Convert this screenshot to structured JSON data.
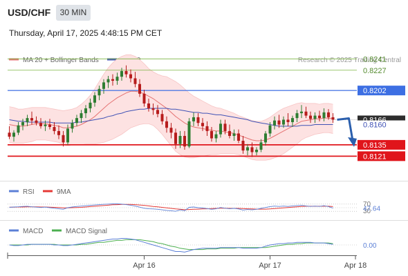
{
  "header": {
    "symbol": "USD/CHF",
    "timeframe": "30 MIN",
    "datetime": "Thursday, April 17, 2025 4:48:15 PM CET"
  },
  "legend": {
    "ma20_label": "MA 20 + Bollinger Bands",
    "ma50_label": "MA 50",
    "credit": "Research © 2025 Trading Central"
  },
  "colors": {
    "candle_up": "#2e7d32",
    "candle_down": "#b71c1c",
    "ma20": "#e57373",
    "ma50": "#3f51b5",
    "bollinger_fill": "#fde2e2",
    "resistance_green": "#7cb342",
    "pivot_blue": "#3d6fe3",
    "support_red": "#e0151b",
    "arrow": "#2b5fad",
    "rsi": "#5b7fd6",
    "rsi_ma": "#e53935",
    "macd": "#5b7fd6",
    "macd_signal": "#4caf50"
  },
  "chart_data": {
    "type": "candlestick",
    "price_range": [
      0.81145,
      0.82285
    ],
    "levels": [
      {
        "value": 0.8241,
        "label": "0.8241",
        "style": "resistance"
      },
      {
        "value": 0.8227,
        "label": "0.8227",
        "style": "resistance"
      },
      {
        "value": 0.8202,
        "label": "0.8202",
        "style": "pivot"
      },
      {
        "value": 0.8135,
        "label": "0.8135",
        "style": "support"
      },
      {
        "value": 0.8121,
        "label": "0.8121",
        "style": "support"
      }
    ],
    "last_price_label": "0.8166",
    "ma50_label": "0.8160",
    "candles": [
      [
        0.815,
        0.8158,
        0.8142,
        0.8145
      ],
      [
        0.8145,
        0.8153,
        0.8139,
        0.815
      ],
      [
        0.815,
        0.8163,
        0.8147,
        0.8159
      ],
      [
        0.8159,
        0.8167,
        0.8153,
        0.8163
      ],
      [
        0.8163,
        0.8172,
        0.8158,
        0.8168
      ],
      [
        0.8168,
        0.8176,
        0.816,
        0.8165
      ],
      [
        0.8165,
        0.817,
        0.8159,
        0.8162
      ],
      [
        0.8162,
        0.8168,
        0.8155,
        0.8158
      ],
      [
        0.8158,
        0.8165,
        0.8152,
        0.816
      ],
      [
        0.816,
        0.8167,
        0.8154,
        0.8157
      ],
      [
        0.8157,
        0.8163,
        0.8148,
        0.8152
      ],
      [
        0.8152,
        0.8159,
        0.8142,
        0.8147
      ],
      [
        0.8147,
        0.8152,
        0.8133,
        0.8138
      ],
      [
        0.8138,
        0.816,
        0.8135,
        0.8155
      ],
      [
        0.8155,
        0.8166,
        0.815,
        0.8162
      ],
      [
        0.8162,
        0.8172,
        0.8158,
        0.8168
      ],
      [
        0.8168,
        0.8178,
        0.8162,
        0.8174
      ],
      [
        0.8174,
        0.8184,
        0.8168,
        0.818
      ],
      [
        0.818,
        0.8192,
        0.8175,
        0.8187
      ],
      [
        0.8187,
        0.82,
        0.8182,
        0.8196
      ],
      [
        0.8196,
        0.8208,
        0.819,
        0.8204
      ],
      [
        0.8204,
        0.8216,
        0.8198,
        0.8212
      ],
      [
        0.8212,
        0.822,
        0.8205,
        0.8216
      ],
      [
        0.8216,
        0.8222,
        0.8208,
        0.8214
      ],
      [
        0.8214,
        0.8224,
        0.8209,
        0.8219
      ],
      [
        0.8219,
        0.823,
        0.8214,
        0.8226
      ],
      [
        0.8226,
        0.8233,
        0.8218,
        0.8222
      ],
      [
        0.8222,
        0.8228,
        0.8212,
        0.8217
      ],
      [
        0.8217,
        0.8225,
        0.8206,
        0.821
      ],
      [
        0.821,
        0.8216,
        0.8194,
        0.8198
      ],
      [
        0.8198,
        0.8203,
        0.8182,
        0.8186
      ],
      [
        0.8186,
        0.8192,
        0.8176,
        0.818
      ],
      [
        0.818,
        0.8186,
        0.8172,
        0.8178
      ],
      [
        0.8178,
        0.8184,
        0.8169,
        0.8173
      ],
      [
        0.8173,
        0.8178,
        0.816,
        0.8164
      ],
      [
        0.8164,
        0.817,
        0.815,
        0.8156
      ],
      [
        0.8156,
        0.8162,
        0.8143,
        0.815
      ],
      [
        0.815,
        0.8155,
        0.813,
        0.8136
      ],
      [
        0.8136,
        0.8152,
        0.8131,
        0.8146
      ],
      [
        0.8146,
        0.8152,
        0.8129,
        0.8133
      ],
      [
        0.8133,
        0.8168,
        0.8131,
        0.8164
      ],
      [
        0.8164,
        0.8175,
        0.8158,
        0.8169
      ],
      [
        0.8169,
        0.8174,
        0.8158,
        0.8162
      ],
      [
        0.8162,
        0.8168,
        0.8152,
        0.8158
      ],
      [
        0.8158,
        0.8164,
        0.8146,
        0.8152
      ],
      [
        0.8152,
        0.8157,
        0.8139,
        0.8143
      ],
      [
        0.8143,
        0.8152,
        0.8138,
        0.8148
      ],
      [
        0.8148,
        0.8166,
        0.8144,
        0.8161
      ],
      [
        0.8161,
        0.8166,
        0.8148,
        0.8152
      ],
      [
        0.8152,
        0.816,
        0.8143,
        0.8146
      ],
      [
        0.8146,
        0.8154,
        0.814,
        0.8149
      ],
      [
        0.8149,
        0.8154,
        0.8137,
        0.814
      ],
      [
        0.814,
        0.8146,
        0.8124,
        0.8128
      ],
      [
        0.8128,
        0.8136,
        0.8122,
        0.8132
      ],
      [
        0.8132,
        0.8138,
        0.812,
        0.8126
      ],
      [
        0.8126,
        0.8132,
        0.8122,
        0.8129
      ],
      [
        0.8129,
        0.8142,
        0.8126,
        0.8138
      ],
      [
        0.8138,
        0.8152,
        0.8134,
        0.8149
      ],
      [
        0.8149,
        0.8163,
        0.8145,
        0.8159
      ],
      [
        0.8159,
        0.817,
        0.8154,
        0.8165
      ],
      [
        0.8165,
        0.8172,
        0.8156,
        0.816
      ],
      [
        0.816,
        0.817,
        0.8156,
        0.8166
      ],
      [
        0.8166,
        0.8174,
        0.8158,
        0.8163
      ],
      [
        0.8163,
        0.8171,
        0.8157,
        0.8168
      ],
      [
        0.8168,
        0.8178,
        0.8163,
        0.8174
      ],
      [
        0.8174,
        0.8184,
        0.8168,
        0.8176
      ],
      [
        0.8176,
        0.8182,
        0.8168,
        0.8171
      ],
      [
        0.8171,
        0.8176,
        0.8162,
        0.8167
      ],
      [
        0.8167,
        0.8175,
        0.8162,
        0.8171
      ],
      [
        0.8171,
        0.8177,
        0.8164,
        0.8168
      ],
      [
        0.8168,
        0.818,
        0.8164,
        0.8175
      ],
      [
        0.8175,
        0.8179,
        0.8166,
        0.8169
      ],
      [
        0.8169,
        0.8174,
        0.8162,
        0.8166
      ]
    ],
    "ma20": [
      0.816,
      0.8159,
      0.8158,
      0.8158,
      0.8159,
      0.816,
      0.8161,
      0.8161,
      0.8161,
      0.816,
      0.8159,
      0.8158,
      0.8156,
      0.8156,
      0.8157,
      0.8158,
      0.816,
      0.8163,
      0.8166,
      0.817,
      0.8175,
      0.818,
      0.8185,
      0.8189,
      0.8193,
      0.8196,
      0.8199,
      0.8201,
      0.8201,
      0.82,
      0.8198,
      0.8195,
      0.8192,
      0.8188,
      0.8184,
      0.818,
      0.8175,
      0.817,
      0.8166,
      0.8162,
      0.8159,
      0.8157,
      0.8156,
      0.8155,
      0.8154,
      0.8153,
      0.8152,
      0.8152,
      0.8151,
      0.815,
      0.8149,
      0.8147,
      0.8145,
      0.8143,
      0.8141,
      0.814,
      0.814,
      0.8141,
      0.8143,
      0.8146,
      0.8149,
      0.8152,
      0.8155,
      0.8158,
      0.8161,
      0.8164,
      0.8165,
      0.8166,
      0.8167,
      0.8167,
      0.8168,
      0.8168,
      0.8167
    ],
    "ma50": [
      0.8166,
      0.8165,
      0.8164,
      0.8164,
      0.8163,
      0.8163,
      0.8163,
      0.8163,
      0.8163,
      0.8163,
      0.8162,
      0.8162,
      0.8162,
      0.8162,
      0.8162,
      0.8163,
      0.8163,
      0.8164,
      0.8165,
      0.8166,
      0.8167,
      0.8168,
      0.817,
      0.8171,
      0.8173,
      0.8174,
      0.8176,
      0.8177,
      0.8178,
      0.8179,
      0.8179,
      0.818,
      0.818,
      0.818,
      0.818,
      0.818,
      0.8179,
      0.8179,
      0.8178,
      0.8177,
      0.8176,
      0.8175,
      0.8175,
      0.8174,
      0.8174,
      0.8173,
      0.8172,
      0.8172,
      0.8171,
      0.817,
      0.8169,
      0.8168,
      0.8167,
      0.8166,
      0.8164,
      0.8163,
      0.8162,
      0.8161,
      0.816,
      0.8159,
      0.8158,
      0.8158,
      0.8158,
      0.8158,
      0.8158,
      0.8159,
      0.8159,
      0.8159,
      0.816,
      0.816,
      0.816,
      0.816,
      0.816
    ],
    "bb_width": [
      0.0022,
      0.0022,
      0.0021,
      0.0021,
      0.0021,
      0.0021,
      0.002,
      0.002,
      0.002,
      0.002,
      0.002,
      0.002,
      0.0021,
      0.0022,
      0.0022,
      0.0023,
      0.0025,
      0.0027,
      0.003,
      0.0034,
      0.0038,
      0.0042,
      0.0045,
      0.0047,
      0.0048,
      0.0048,
      0.0047,
      0.0045,
      0.0043,
      0.004,
      0.0037,
      0.0034,
      0.0033,
      0.0034,
      0.0036,
      0.0039,
      0.0041,
      0.0043,
      0.0043,
      0.0042,
      0.004,
      0.0038,
      0.0036,
      0.0034,
      0.0032,
      0.003,
      0.0029,
      0.0028,
      0.0027,
      0.0026,
      0.0025,
      0.0024,
      0.0024,
      0.0024,
      0.0024,
      0.0024,
      0.0024,
      0.0025,
      0.0026,
      0.0027,
      0.0028,
      0.0028,
      0.0027,
      0.0026,
      0.0025,
      0.0023,
      0.0021,
      0.002,
      0.0019,
      0.0018,
      0.0018,
      0.0018,
      0.0018
    ],
    "forecast": [
      0.8166,
      0.8135
    ],
    "rsi": {
      "label": "RSI",
      "ma_label": "9MA",
      "levels": [
        {
          "value": 70,
          "label": "70"
        },
        {
          "value": 30,
          "label": "30"
        }
      ],
      "value_label": "47.64",
      "values": [
        52,
        54,
        55,
        57,
        58,
        55,
        53,
        51,
        53,
        50,
        47,
        44,
        41,
        50,
        54,
        57,
        59,
        61,
        63,
        65,
        67,
        69,
        70,
        71,
        72,
        70,
        67,
        64,
        59,
        53,
        47,
        44,
        43,
        41,
        38,
        35,
        33,
        30,
        38,
        33,
        52,
        54,
        50,
        48,
        45,
        41,
        44,
        51,
        47,
        44,
        46,
        43,
        37,
        40,
        38,
        41,
        46,
        51,
        56,
        59,
        57,
        59,
        57,
        60,
        62,
        63,
        60,
        57,
        59,
        57,
        61,
        56,
        47.64
      ],
      "ma": [
        53,
        53,
        54,
        54,
        55,
        55,
        55,
        54,
        54,
        53,
        52,
        51,
        49,
        49,
        50,
        51,
        52,
        54,
        56,
        58,
        60,
        62,
        64,
        66,
        67,
        68,
        68,
        68,
        67,
        65,
        63,
        60,
        57,
        55,
        52,
        49,
        46,
        43,
        41,
        39,
        40,
        41,
        42,
        43,
        44,
        45,
        46,
        47,
        47,
        46,
        46,
        46,
        45,
        44,
        43,
        42,
        42,
        42,
        43,
        45,
        47,
        49,
        51,
        53,
        55,
        57,
        58,
        58,
        58,
        58,
        58,
        58,
        56
      ]
    },
    "macd": {
      "label": "MACD",
      "signal_label": "MACD Signal",
      "value_label": "0.00",
      "values": [
        0.0,
        -0.0001,
        -0.0001,
        0.0,
        0.0001,
        0.0001,
        0.0001,
        0.0001,
        0.0001,
        0.0001,
        0.0,
        0.0,
        -0.0001,
        -0.0001,
        0.0,
        0.0001,
        0.0002,
        0.0003,
        0.0004,
        0.0005,
        0.0006,
        0.0007,
        0.0008,
        0.0009,
        0.0009,
        0.001,
        0.001,
        0.0009,
        0.0008,
        0.0006,
        0.0004,
        0.0002,
        0.0,
        -0.0002,
        -0.0004,
        -0.0006,
        -0.0008,
        -0.001,
        -0.001,
        -0.0011,
        -0.0009,
        -0.0007,
        -0.0006,
        -0.0005,
        -0.0005,
        -0.0005,
        -0.0005,
        -0.0004,
        -0.0004,
        -0.0004,
        -0.0004,
        -0.0004,
        -0.0005,
        -0.0005,
        -0.0005,
        -0.0005,
        -0.0004,
        -0.0002,
        0.0,
        0.0001,
        0.0002,
        0.0002,
        0.0003,
        0.0003,
        0.0004,
        0.0004,
        0.0004,
        0.0004,
        0.0003,
        0.0003,
        0.0003,
        0.0002,
        0.0001
      ],
      "signal": [
        0.0,
        0.0,
        0.0,
        0.0,
        0.0,
        0.0001,
        0.0001,
        0.0001,
        0.0001,
        0.0001,
        0.0001,
        0.0,
        0.0,
        0.0,
        0.0,
        0.0,
        0.0001,
        0.0001,
        0.0002,
        0.0003,
        0.0004,
        0.0004,
        0.0005,
        0.0006,
        0.0007,
        0.0007,
        0.0008,
        0.0008,
        0.0008,
        0.0008,
        0.0007,
        0.0006,
        0.0005,
        0.0003,
        0.0002,
        0.0,
        -0.0002,
        -0.0003,
        -0.0005,
        -0.0006,
        -0.0007,
        -0.0007,
        -0.0007,
        -0.0007,
        -0.0006,
        -0.0006,
        -0.0006,
        -0.0005,
        -0.0005,
        -0.0005,
        -0.0005,
        -0.0004,
        -0.0004,
        -0.0004,
        -0.0004,
        -0.0004,
        -0.0004,
        -0.0004,
        -0.0003,
        -0.0002,
        -0.0001,
        0.0,
        0.0001,
        0.0001,
        0.0002,
        0.0002,
        0.0003,
        0.0003,
        0.0003,
        0.0003,
        0.0003,
        0.0003,
        0.0002
      ]
    },
    "x_labels": [
      {
        "index": 30,
        "label": "Apr 16"
      },
      {
        "index": 58,
        "label": "Apr 17"
      },
      {
        "index": 77,
        "label": "Apr 18"
      }
    ]
  }
}
